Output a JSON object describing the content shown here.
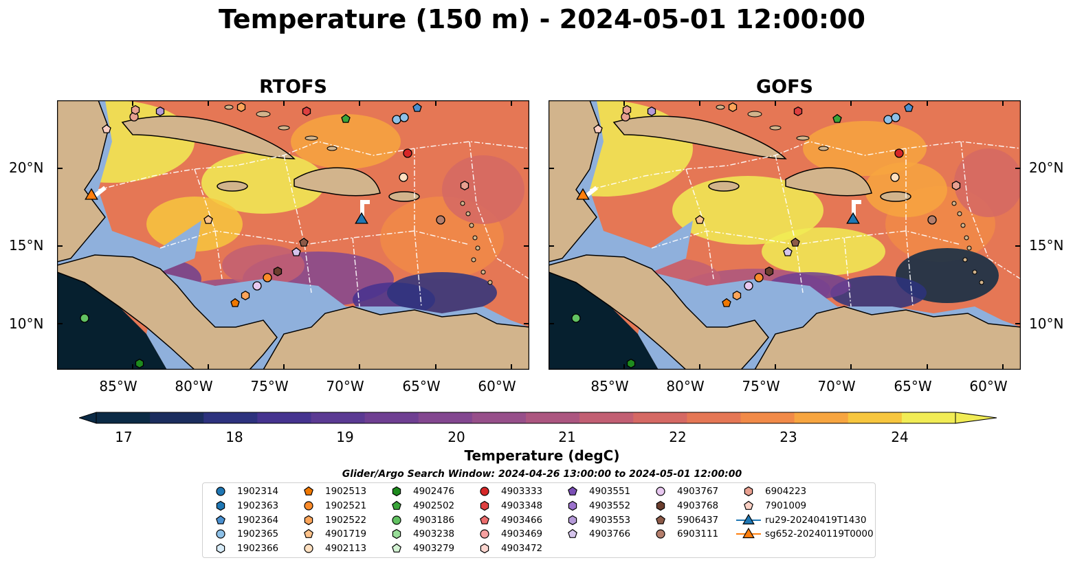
{
  "title": "Temperature (150 m) - 2024-05-01 12:00:00",
  "panels": [
    {
      "title": "RTOFS"
    },
    {
      "title": "GOFS"
    }
  ],
  "lat_labels": [
    "20°N",
    "15°N",
    "10°N"
  ],
  "lon_labels": [
    "85°W",
    "80°W",
    "75°W",
    "70°W",
    "65°W",
    "60°W"
  ],
  "colorbar": {
    "label": "Temperature (degC)",
    "ticks": [
      "17",
      "18",
      "19",
      "20",
      "21",
      "22",
      "23",
      "24"
    ],
    "range": [
      17,
      24.5
    ],
    "colors": [
      "#0b2a45",
      "#1b2d5e",
      "#2d327e",
      "#45338f",
      "#5b3a93",
      "#6f3f92",
      "#834790",
      "#974f8a",
      "#ac5680",
      "#c25f73",
      "#d56964",
      "#e57755",
      "#f18a48",
      "#f7a540",
      "#f7c63e",
      "#f1ec55"
    ]
  },
  "search_window": "Glider/Argo Search Window: 2024-04-26 13:00:00 to 2024-05-01 12:00:00",
  "legend": [
    [
      {
        "label": "1902314",
        "shape": "circle",
        "color": "#1f77b4"
      },
      {
        "label": "1902363",
        "shape": "hexagon",
        "color": "#1f77b4"
      },
      {
        "label": "1902364",
        "shape": "pentagon",
        "color": "#4a90d0"
      },
      {
        "label": "1902365",
        "shape": "circle",
        "color": "#8ec1e8"
      },
      {
        "label": "1902366",
        "shape": "hexagon",
        "color": "#d8ecf8"
      }
    ],
    [
      {
        "label": "1902513",
        "shape": "pentagon",
        "color": "#f07800"
      },
      {
        "label": "1902521",
        "shape": "circle",
        "color": "#fb8b2a"
      },
      {
        "label": "1902522",
        "shape": "hexagon",
        "color": "#fca55a"
      },
      {
        "label": "4901719",
        "shape": "pentagon",
        "color": "#fdc28a"
      },
      {
        "label": "4902113",
        "shape": "circle",
        "color": "#fee0c0"
      }
    ],
    [
      {
        "label": "4902476",
        "shape": "hexagon",
        "color": "#1e8b1e"
      },
      {
        "label": "4902502",
        "shape": "pentagon",
        "color": "#3aa53a"
      },
      {
        "label": "4903186",
        "shape": "circle",
        "color": "#62c262"
      },
      {
        "label": "4903238",
        "shape": "hexagon",
        "color": "#98dd98"
      },
      {
        "label": "4903279",
        "shape": "pentagon",
        "color": "#d3f2d3"
      }
    ],
    [
      {
        "label": "4903333",
        "shape": "circle",
        "color": "#d62728"
      },
      {
        "label": "4903348",
        "shape": "hexagon",
        "color": "#de4040"
      },
      {
        "label": "4903466",
        "shape": "pentagon",
        "color": "#ec6e6e"
      },
      {
        "label": "4903469",
        "shape": "circle",
        "color": "#f6a0a0"
      },
      {
        "label": "4903472",
        "shape": "hexagon",
        "color": "#fdd6d0"
      }
    ],
    [
      {
        "label": "4903551",
        "shape": "pentagon",
        "color": "#7b4fb6"
      },
      {
        "label": "4903552",
        "shape": "hexagon",
        "color": "#9b72cc"
      },
      {
        "label": "4903553",
        "shape": "hexagon",
        "color": "#b59ad8"
      },
      {
        "label": "4903766",
        "shape": "pentagon",
        "color": "#d5c4ec"
      }
    ],
    [
      {
        "label": "4903767",
        "shape": "circle",
        "color": "#e8c8f0"
      },
      {
        "label": "4903768",
        "shape": "hexagon",
        "color": "#6b3e2e"
      },
      {
        "label": "5906437",
        "shape": "pentagon",
        "color": "#8c5a48"
      },
      {
        "label": "6903111",
        "shape": "circle",
        "color": "#b47e6c"
      }
    ],
    [
      {
        "label": "6904223",
        "shape": "hexagon",
        "color": "#e8a090"
      },
      {
        "label": "7901009",
        "shape": "pentagon",
        "color": "#fbd0c4"
      },
      {
        "label": "ru29-20240419T1430",
        "shape": "triangle-line",
        "color": "#1f77b4"
      },
      {
        "label": "sg652-20240119T0000",
        "shape": "triangle-line",
        "color": "#ff7f0e"
      }
    ]
  ]
}
